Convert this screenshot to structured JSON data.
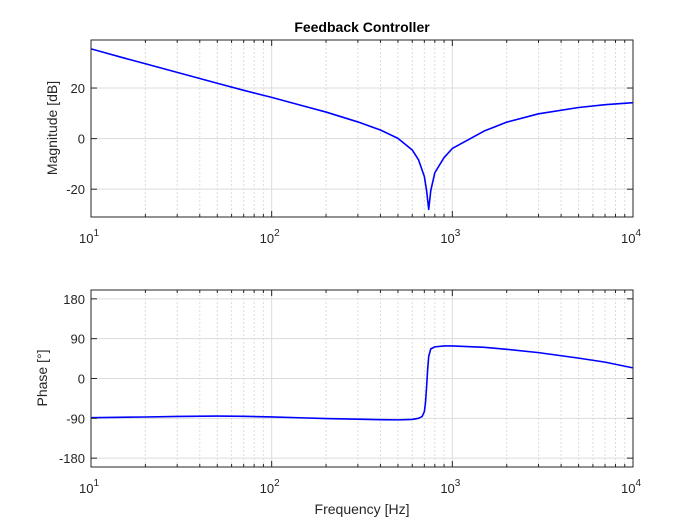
{
  "chart_data": [
    {
      "type": "line",
      "panel": "magnitude",
      "title": "Feedback Controller",
      "xlabel": "",
      "ylabel": "Magnitude [dB]",
      "xscale": "log",
      "xlim": [
        10,
        10000
      ],
      "ylim": [
        -31,
        39
      ],
      "grid": true,
      "yticks": [
        {
          "value": -20,
          "label": "-20"
        },
        {
          "value": 0,
          "label": "0"
        },
        {
          "value": 20,
          "label": "20"
        }
      ],
      "xticks": [
        {
          "value": 10,
          "base": "10",
          "exp": "1"
        },
        {
          "value": 100,
          "base": "10",
          "exp": "2"
        },
        {
          "value": 1000,
          "base": "10",
          "exp": "3"
        },
        {
          "value": 10000,
          "base": "10",
          "exp": "4"
        }
      ],
      "series": [
        {
          "name": "magnitude",
          "color": "#0000ff",
          "x": [
            10,
            15,
            20,
            30,
            50,
            70,
            100,
            150,
            200,
            300,
            400,
            500,
            600,
            650,
            700,
            720,
            740,
            760,
            800,
            900,
            1000,
            1500,
            2000,
            3000,
            5000,
            7000,
            10000
          ],
          "y": [
            35.5,
            32.0,
            29.6,
            26.2,
            21.9,
            19.1,
            16.3,
            12.9,
            10.5,
            6.6,
            3.4,
            0.1,
            -4.5,
            -8.4,
            -15.0,
            -20.5,
            -28.0,
            -20.5,
            -13.5,
            -7.5,
            -3.9,
            3.0,
            6.5,
            9.8,
            12.3,
            13.4,
            14.2
          ]
        }
      ]
    },
    {
      "type": "line",
      "panel": "phase",
      "title": "",
      "xlabel": "Frequency [Hz]",
      "ylabel": "Phase [°]",
      "xscale": "log",
      "xlim": [
        10,
        10000
      ],
      "ylim": [
        -200,
        200
      ],
      "grid": true,
      "yticks": [
        {
          "value": -180,
          "label": "-180"
        },
        {
          "value": -90,
          "label": "-90"
        },
        {
          "value": 0,
          "label": "0"
        },
        {
          "value": 90,
          "label": "90"
        },
        {
          "value": 180,
          "label": "180"
        }
      ],
      "xticks": [
        {
          "value": 10,
          "base": "10",
          "exp": "1"
        },
        {
          "value": 100,
          "base": "10",
          "exp": "2"
        },
        {
          "value": 1000,
          "base": "10",
          "exp": "3"
        },
        {
          "value": 10000,
          "base": "10",
          "exp": "4"
        }
      ],
      "series": [
        {
          "name": "phase",
          "color": "#0000ff",
          "x": [
            10,
            20,
            30,
            50,
            70,
            100,
            150,
            200,
            300,
            400,
            500,
            600,
            650,
            680,
            700,
            710,
            720,
            730,
            740,
            760,
            800,
            900,
            1000,
            1500,
            2000,
            3000,
            5000,
            7000,
            10000
          ],
          "y": [
            -88.5,
            -87.0,
            -85.8,
            -84.9,
            -85.4,
            -86.8,
            -89.0,
            -90.5,
            -92.0,
            -93.0,
            -93.5,
            -92.5,
            -90.0,
            -86.0,
            -75.0,
            -55.0,
            -20.0,
            20.0,
            50.0,
            67.0,
            71.5,
            73.5,
            73.5,
            70.5,
            66.0,
            58.5,
            46.0,
            37.0,
            24.0
          ]
        }
      ]
    }
  ]
}
